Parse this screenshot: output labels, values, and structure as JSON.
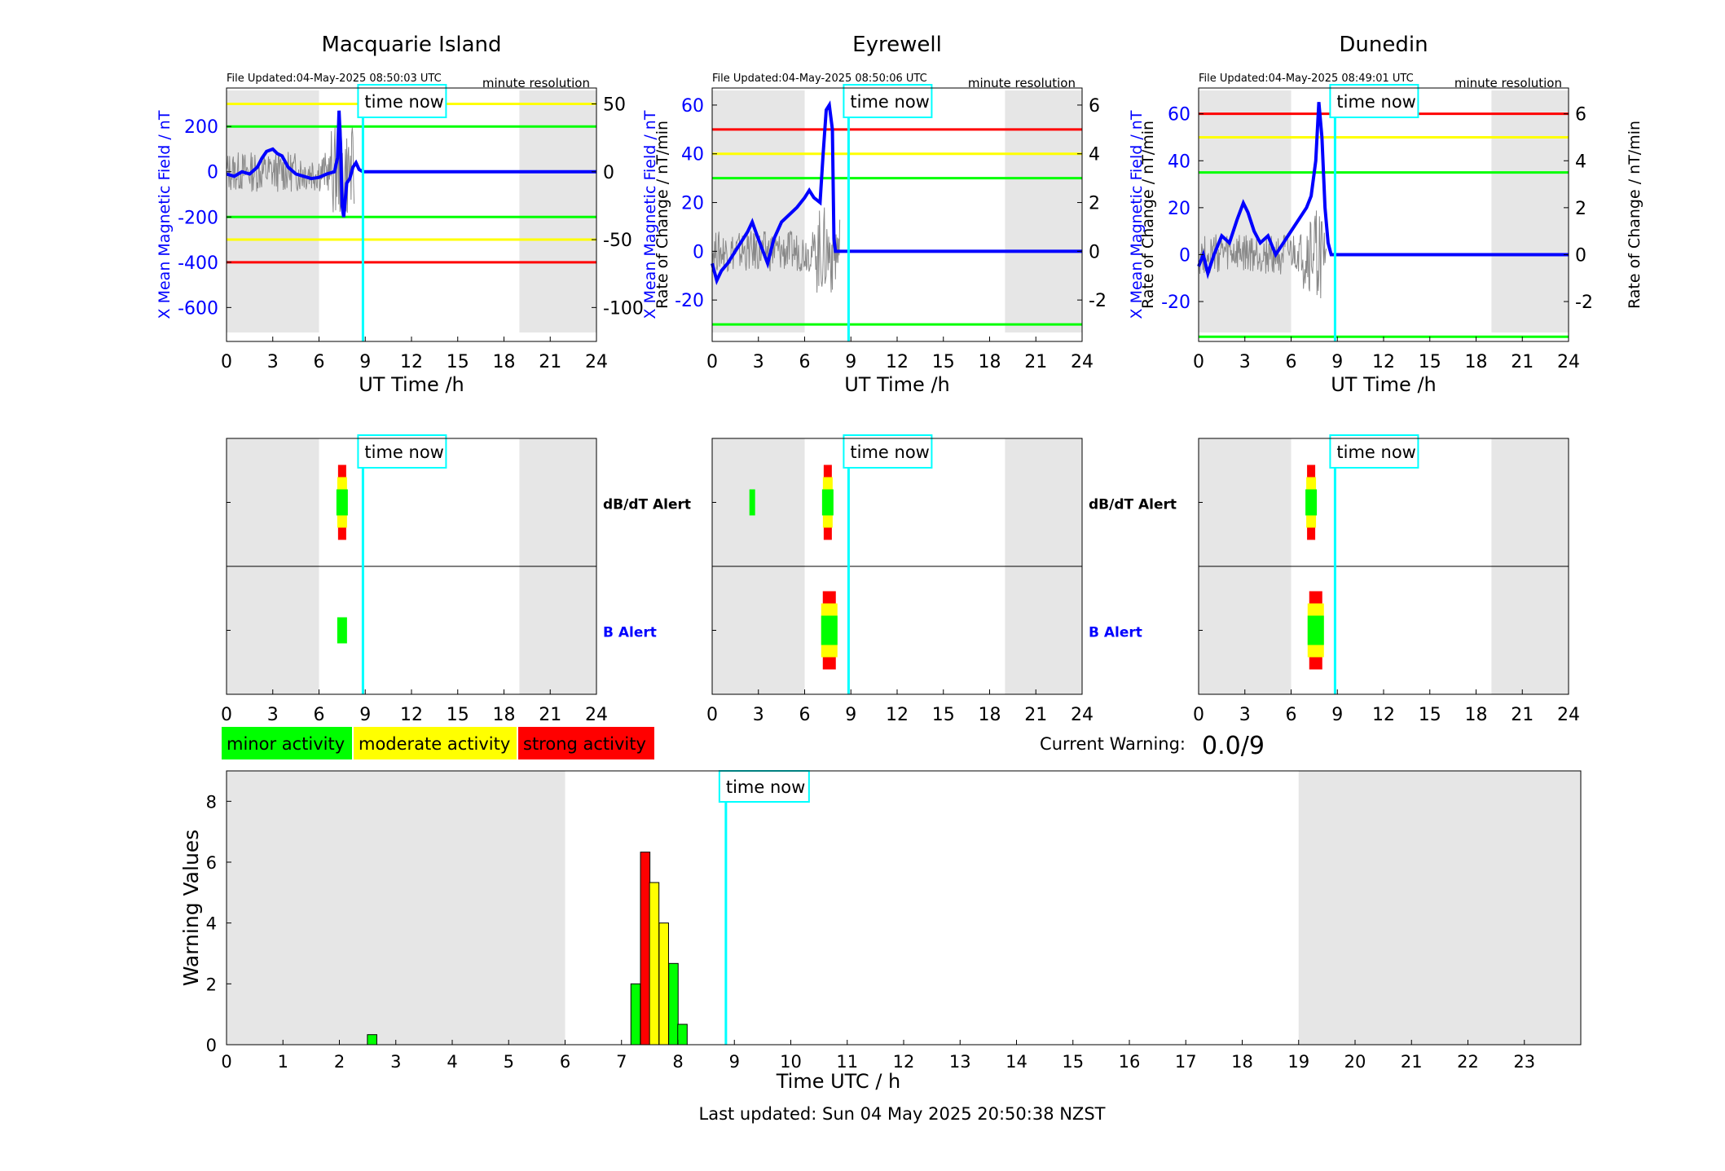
{
  "colors": {
    "minor": "#00ff00",
    "moderate": "#ffff00",
    "strong": "#ff0000",
    "field_line": "#0000ff",
    "rate_line": "#888888",
    "time_now": "#00ffff",
    "night_shade": "#e6e6e6"
  },
  "time_now_label": "time now",
  "time_now_utc": 8.85,
  "chart_data": [
    {
      "type": "line",
      "station": "Macquarie Island",
      "title": "Macquarie Island",
      "file_updated": "File Updated:04-May-2025 08:50:03 UTC",
      "resolution": "minute resolution",
      "xlabel": "UT Time /h",
      "ylabel_left": "X Mean Magnetic Field / nT",
      "ylabel_right": "Rate of Change / nT/min",
      "xlim": [
        0,
        24
      ],
      "ylim_left": [
        -750,
        370
      ],
      "ylim_right": [
        -125,
        61.7
      ],
      "xticks": [
        "0",
        "3",
        "6",
        "9",
        "12",
        "15",
        "18",
        "21",
        "24"
      ],
      "yticks_left": [
        "200",
        "0",
        "-200",
        "-400",
        "-600"
      ],
      "yticks_right": [
        "50",
        "0",
        "-50",
        "-100"
      ],
      "night_shade": [
        [
          0,
          6
        ],
        [
          19,
          24
        ]
      ],
      "thresholds": [
        {
          "level": "moderate",
          "value": 300
        },
        {
          "level": "minor",
          "value": 200
        },
        {
          "level": "minor",
          "value": -200
        },
        {
          "level": "moderate",
          "value": -300
        },
        {
          "level": "strong",
          "value": -400
        }
      ],
      "series": [
        {
          "axis": "left",
          "x": [
            0,
            0.5,
            1,
            1.5,
            2,
            2.3,
            2.6,
            3,
            3.3,
            3.6,
            4,
            4.5,
            5,
            5.5,
            6,
            6.5,
            7,
            7.2,
            7.3,
            7.4,
            7.5,
            7.6,
            7.8,
            8,
            8.2,
            8.4,
            8.6,
            8.85,
            9,
            24
          ],
          "y": [
            -10,
            -20,
            0,
            -10,
            20,
            60,
            90,
            100,
            80,
            70,
            20,
            -10,
            -20,
            -30,
            -25,
            -10,
            0,
            60,
            270,
            120,
            -150,
            -200,
            -50,
            -30,
            20,
            40,
            10,
            0,
            0,
            0
          ]
        }
      ]
    },
    {
      "type": "line",
      "station": "Eyrewell",
      "title": "Eyrewell",
      "file_updated": "File Updated:04-May-2025 08:50:06 UTC",
      "resolution": "minute resolution",
      "xlabel": "UT Time /h",
      "ylabel_left": "X Mean Magnetic Field / nT",
      "ylabel_right": "Rate of Change / nT/min",
      "xlim": [
        0,
        24
      ],
      "ylim_left": [
        -37,
        67
      ],
      "ylim_right": [
        -3.7,
        6.7
      ],
      "xticks": [
        "0",
        "3",
        "6",
        "9",
        "12",
        "15",
        "18",
        "21",
        "24"
      ],
      "yticks_left": [
        "60",
        "40",
        "20",
        "0",
        "-20"
      ],
      "yticks_right": [
        "6",
        "4",
        "2",
        "0",
        "-2"
      ],
      "night_shade": [
        [
          0,
          6
        ],
        [
          19,
          24
        ]
      ],
      "thresholds": [
        {
          "level": "strong",
          "value": 50
        },
        {
          "level": "moderate",
          "value": 40
        },
        {
          "level": "minor",
          "value": 30
        },
        {
          "level": "minor",
          "value": -30
        }
      ],
      "series": [
        {
          "axis": "left",
          "x": [
            0,
            0.3,
            0.6,
            1,
            1.5,
            2,
            2.3,
            2.6,
            3,
            3.3,
            3.6,
            4,
            4.5,
            5,
            5.5,
            6,
            6.3,
            6.6,
            7,
            7.2,
            7.4,
            7.6,
            7.8,
            7.9,
            8,
            24
          ],
          "y": [
            -5,
            -12,
            -8,
            -5,
            0,
            5,
            8,
            12,
            5,
            0,
            -5,
            5,
            12,
            15,
            18,
            22,
            25,
            22,
            20,
            40,
            58,
            60,
            50,
            5,
            0,
            0
          ]
        }
      ]
    },
    {
      "type": "line",
      "station": "Dunedin",
      "title": "Dunedin",
      "file_updated": "File Updated:04-May-2025 08:49:01 UTC",
      "resolution": "minute resolution",
      "xlabel": "UT Time /h",
      "ylabel_left": "X Mean Magnetic Field / nT",
      "ylabel_right": "Rate of Change / nT/min",
      "xlim": [
        0,
        24
      ],
      "ylim_left": [
        -37,
        71
      ],
      "ylim_right": [
        -3.7,
        7.1
      ],
      "xticks": [
        "0",
        "3",
        "6",
        "9",
        "12",
        "15",
        "18",
        "21",
        "24"
      ],
      "yticks_left": [
        "60",
        "40",
        "20",
        "0",
        "-20"
      ],
      "yticks_right": [
        "6",
        "4",
        "2",
        "0",
        "-2"
      ],
      "night_shade": [
        [
          0,
          6
        ],
        [
          19,
          24
        ]
      ],
      "thresholds": [
        {
          "level": "strong",
          "value": 60
        },
        {
          "level": "moderate",
          "value": 50
        },
        {
          "level": "minor",
          "value": 35
        },
        {
          "level": "minor",
          "value": -35
        }
      ],
      "series": [
        {
          "axis": "left",
          "x": [
            0,
            0.3,
            0.6,
            1,
            1.5,
            2,
            2.5,
            2.9,
            3.2,
            3.6,
            4,
            4.5,
            5,
            5.5,
            6,
            6.5,
            7,
            7.3,
            7.6,
            7.8,
            8,
            8.2,
            8.4,
            8.6,
            8.85,
            24
          ],
          "y": [
            -5,
            0,
            -8,
            0,
            8,
            5,
            15,
            22,
            18,
            10,
            5,
            8,
            0,
            5,
            10,
            15,
            20,
            25,
            40,
            65,
            50,
            20,
            5,
            0,
            0,
            0
          ]
        }
      ]
    },
    {
      "type": "bar",
      "panel": "alerts",
      "stations": [
        "Macquarie Island",
        "Eyrewell",
        "Dunedin"
      ],
      "row_labels": [
        "dB/dT Alert",
        "B Alert"
      ],
      "xlim": [
        0,
        24
      ],
      "xticks": [
        "0",
        "3",
        "6",
        "9",
        "12",
        "15",
        "18",
        "21",
        "24"
      ],
      "night_shade": [
        [
          0,
          6
        ],
        [
          19,
          24
        ]
      ],
      "alerts": [
        {
          "station": "Macquarie Island",
          "row": "dB/dT Alert",
          "x": 7.5,
          "level": "strong"
        },
        {
          "station": "Macquarie Island",
          "row": "B Alert",
          "x": 7.5,
          "level": "minor"
        },
        {
          "station": "Eyrewell",
          "row": "dB/dT Alert",
          "x": 2.6,
          "level": "minor"
        },
        {
          "station": "Eyrewell",
          "row": "dB/dT Alert",
          "x": 7.5,
          "level": "strong"
        },
        {
          "station": "Eyrewell",
          "row": "B Alert",
          "x": 7.6,
          "level": "strong"
        },
        {
          "station": "Dunedin",
          "row": "dB/dT Alert",
          "x": 7.3,
          "level": "strong"
        },
        {
          "station": "Dunedin",
          "row": "B Alert",
          "x": 7.6,
          "level": "strong"
        }
      ]
    },
    {
      "type": "bar",
      "panel": "warning",
      "xlabel": "Time UTC / h",
      "ylabel": "Warning Values",
      "xlim": [
        0,
        24
      ],
      "ylim": [
        0,
        9
      ],
      "xticks": [
        "0",
        "1",
        "2",
        "3",
        "4",
        "5",
        "6",
        "7",
        "8",
        "9",
        "10",
        "11",
        "12",
        "13",
        "14",
        "15",
        "16",
        "17",
        "18",
        "19",
        "20",
        "21",
        "22",
        "23"
      ],
      "yticks": [
        "0",
        "2",
        "4",
        "6",
        "8"
      ],
      "night_shade": [
        [
          0,
          6
        ],
        [
          19,
          24
        ]
      ],
      "bar_width": 0.167,
      "bars": [
        {
          "x": 2.58,
          "value": 0.33,
          "level": "minor"
        },
        {
          "x": 7.25,
          "value": 2.0,
          "level": "minor"
        },
        {
          "x": 7.42,
          "value": 6.33,
          "level": "strong"
        },
        {
          "x": 7.58,
          "value": 5.33,
          "level": "moderate"
        },
        {
          "x": 7.75,
          "value": 4.0,
          "level": "moderate"
        },
        {
          "x": 7.92,
          "value": 2.67,
          "level": "minor"
        },
        {
          "x": 8.08,
          "value": 0.67,
          "level": "minor"
        }
      ]
    }
  ],
  "legend": [
    {
      "label": "minor activity",
      "level": "minor"
    },
    {
      "label": "moderate activity",
      "level": "moderate"
    },
    {
      "label": "strong activity",
      "level": "strong"
    }
  ],
  "current_warning_label": "Current Warning:",
  "current_warning_value": "0.0/9",
  "last_updated": "Last updated: Sun 04 May 2025 20:50:38 NZST"
}
